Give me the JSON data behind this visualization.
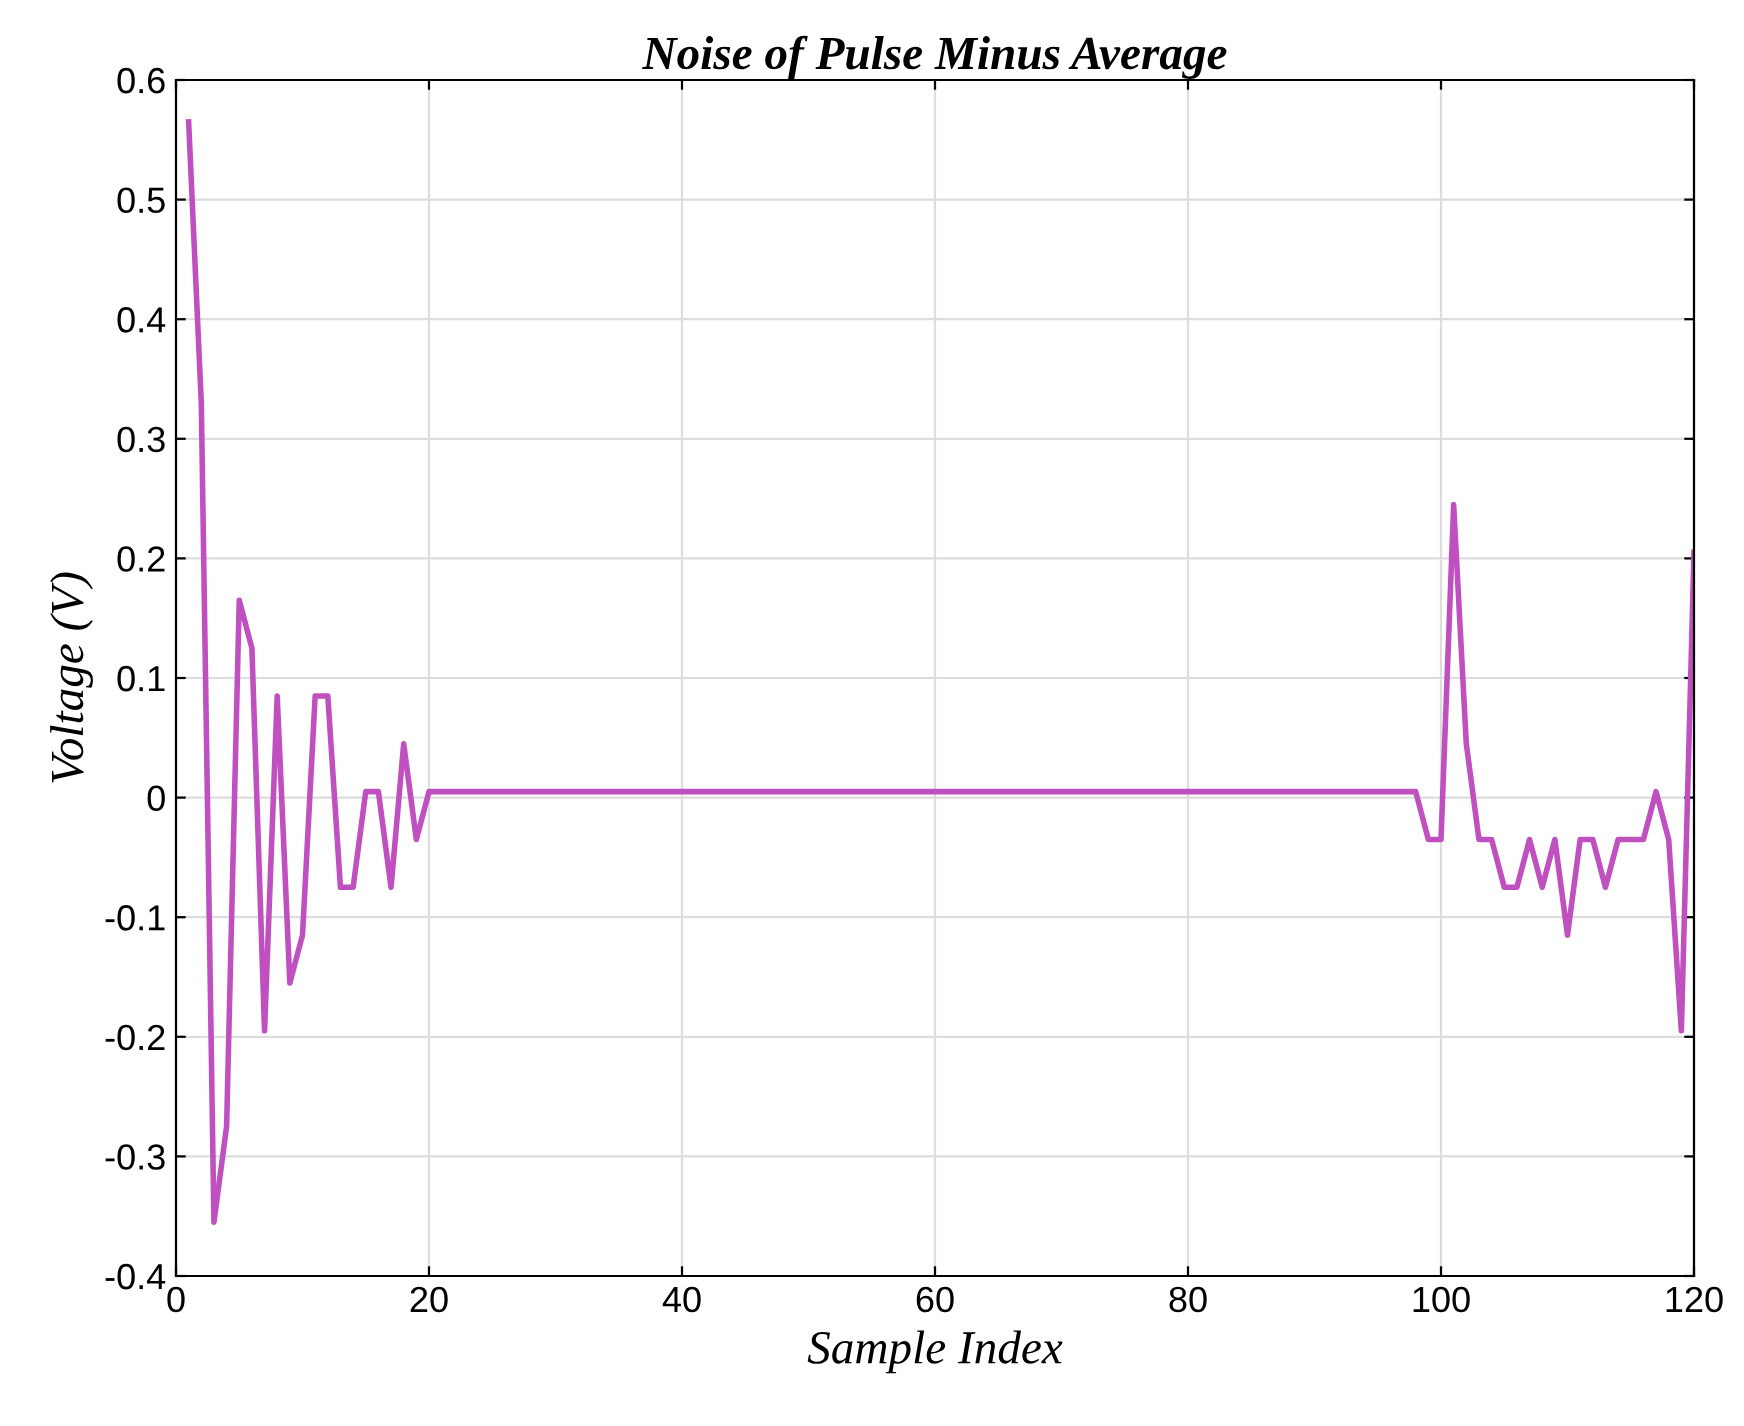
{
  "chart_data": {
    "type": "line",
    "title": "Noise of Pulse Minus Average",
    "xlabel": "Sample Index",
    "ylabel": "Voltage (V)",
    "x": [
      1,
      2,
      3,
      4,
      5,
      6,
      7,
      8,
      9,
      10,
      11,
      12,
      13,
      14,
      15,
      16,
      17,
      18,
      19,
      20,
      98,
      99,
      100,
      101,
      102,
      103,
      104,
      105,
      106,
      107,
      108,
      109,
      110,
      111,
      112,
      113,
      114,
      115,
      116,
      117,
      118,
      119,
      120
    ],
    "series": [
      {
        "color": "#c04fc0",
        "values": [
          0.565,
          0.33,
          -0.355,
          -0.275,
          0.165,
          0.125,
          -0.195,
          0.085,
          -0.155,
          -0.115,
          0.085,
          0.085,
          -0.075,
          -0.075,
          0.005,
          0.005,
          -0.075,
          0.045,
          -0.035,
          0.005,
          0.005,
          -0.035,
          -0.035,
          0.245,
          0.045,
          -0.035,
          -0.035,
          -0.075,
          -0.075,
          -0.035,
          -0.075,
          -0.035,
          -0.115,
          -0.035,
          -0.035,
          -0.075,
          -0.035,
          -0.035,
          -0.035,
          0.005,
          -0.035,
          -0.195,
          0.205
        ]
      }
    ],
    "xlim": [
      0,
      120
    ],
    "ylim": [
      -0.4,
      0.6
    ],
    "xticks": [
      0,
      20,
      40,
      60,
      80,
      100,
      120
    ],
    "yticks": [
      -0.4,
      -0.3,
      -0.2,
      -0.1,
      0,
      0.1,
      0.2,
      0.3,
      0.4,
      0.5,
      0.6
    ],
    "grid": true,
    "legend": false,
    "marker": "none",
    "line_style": "solid"
  }
}
